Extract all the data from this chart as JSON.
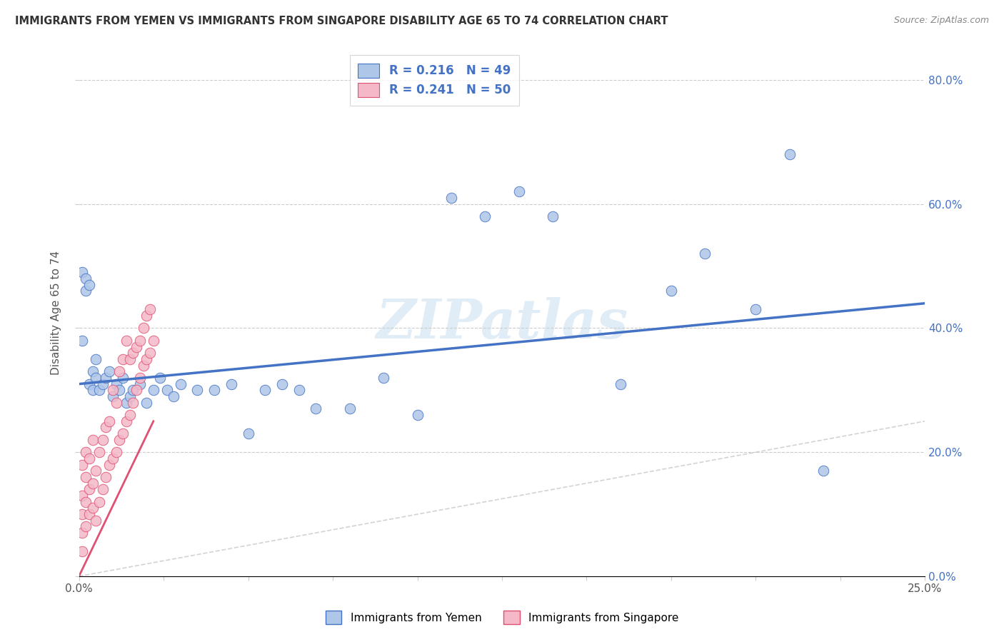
{
  "title": "IMMIGRANTS FROM YEMEN VS IMMIGRANTS FROM SINGAPORE DISABILITY AGE 65 TO 74 CORRELATION CHART",
  "source": "Source: ZipAtlas.com",
  "ylabel": "Disability Age 65 to 74",
  "xlim": [
    0.0,
    0.25
  ],
  "ylim": [
    0.0,
    0.85
  ],
  "x_tick_positions": [
    0.0,
    0.025,
    0.05,
    0.075,
    0.1,
    0.125,
    0.15,
    0.175,
    0.2,
    0.225,
    0.25
  ],
  "x_tick_labels_show": {
    "0.0": "0.0%",
    "0.25": "25.0%"
  },
  "y_ticks": [
    0.0,
    0.2,
    0.4,
    0.6,
    0.8
  ],
  "legend_line1": "R = 0.216   N = 49",
  "legend_line2": "R = 0.241   N = 50",
  "legend_label_yemen": "Immigrants from Yemen",
  "legend_label_singapore": "Immigrants from Singapore",
  "color_yemen": "#aec6e8",
  "color_singapore": "#f4b8c8",
  "color_line_yemen": "#4472c4",
  "color_line_singapore": "#e05070",
  "color_diag": "#c8c8c8",
  "watermark": "ZIPatlas",
  "yemen_x": [
    0.001,
    0.001,
    0.002,
    0.002,
    0.003,
    0.003,
    0.004,
    0.004,
    0.005,
    0.005,
    0.006,
    0.007,
    0.008,
    0.009,
    0.01,
    0.011,
    0.012,
    0.013,
    0.014,
    0.015,
    0.016,
    0.018,
    0.02,
    0.022,
    0.024,
    0.026,
    0.028,
    0.03,
    0.035,
    0.04,
    0.045,
    0.05,
    0.055,
    0.06,
    0.065,
    0.07,
    0.08,
    0.09,
    0.1,
    0.11,
    0.12,
    0.13,
    0.14,
    0.16,
    0.175,
    0.185,
    0.2,
    0.21,
    0.22
  ],
  "yemen_y": [
    0.49,
    0.38,
    0.48,
    0.46,
    0.47,
    0.31,
    0.33,
    0.3,
    0.32,
    0.35,
    0.3,
    0.31,
    0.32,
    0.33,
    0.29,
    0.31,
    0.3,
    0.32,
    0.28,
    0.29,
    0.3,
    0.31,
    0.28,
    0.3,
    0.32,
    0.3,
    0.29,
    0.31,
    0.3,
    0.3,
    0.31,
    0.23,
    0.3,
    0.31,
    0.3,
    0.27,
    0.27,
    0.32,
    0.26,
    0.61,
    0.58,
    0.62,
    0.58,
    0.31,
    0.46,
    0.52,
    0.43,
    0.68,
    0.17
  ],
  "singapore_x": [
    0.001,
    0.001,
    0.001,
    0.001,
    0.001,
    0.002,
    0.002,
    0.002,
    0.002,
    0.003,
    0.003,
    0.003,
    0.004,
    0.004,
    0.004,
    0.005,
    0.005,
    0.006,
    0.006,
    0.007,
    0.007,
    0.008,
    0.008,
    0.009,
    0.009,
    0.01,
    0.01,
    0.011,
    0.011,
    0.012,
    0.012,
    0.013,
    0.013,
    0.014,
    0.014,
    0.015,
    0.015,
    0.016,
    0.016,
    0.017,
    0.017,
    0.018,
    0.018,
    0.019,
    0.019,
    0.02,
    0.02,
    0.021,
    0.021,
    0.022
  ],
  "singapore_y": [
    0.04,
    0.07,
    0.1,
    0.13,
    0.18,
    0.08,
    0.12,
    0.16,
    0.2,
    0.1,
    0.14,
    0.19,
    0.11,
    0.15,
    0.22,
    0.09,
    0.17,
    0.12,
    0.2,
    0.14,
    0.22,
    0.16,
    0.24,
    0.18,
    0.25,
    0.19,
    0.3,
    0.2,
    0.28,
    0.22,
    0.33,
    0.23,
    0.35,
    0.25,
    0.38,
    0.26,
    0.35,
    0.28,
    0.36,
    0.3,
    0.37,
    0.32,
    0.38,
    0.34,
    0.4,
    0.35,
    0.42,
    0.36,
    0.43,
    0.38
  ]
}
